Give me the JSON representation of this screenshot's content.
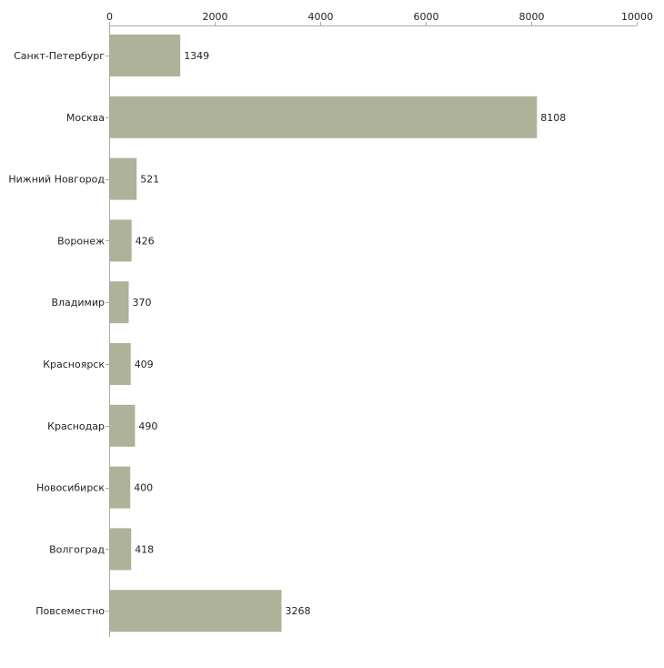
{
  "chart_data": {
    "type": "bar",
    "orientation": "horizontal",
    "title": "",
    "xlabel": "",
    "ylabel": "",
    "xlim": [
      0,
      10000
    ],
    "x_ticks": [
      0,
      2000,
      4000,
      6000,
      8000,
      10000
    ],
    "x_tick_labels": [
      "0",
      "2000",
      "4000",
      "6000",
      "8000",
      "10000"
    ],
    "x_axis_position": "top",
    "grid": false,
    "legend": null,
    "categories": [
      "Санкт-Петербург",
      "Москва",
      "Нижний Новгород",
      "Воронеж",
      "Владимир",
      "Красноярск",
      "Краснодар",
      "Новосибирск",
      "Волгоград",
      "Повсеместно"
    ],
    "values": [
      1349,
      8108,
      521,
      426,
      370,
      409,
      490,
      400,
      418,
      3268
    ],
    "value_labels": [
      "1349",
      "8108",
      "521",
      "426",
      "370",
      "409",
      "490",
      "400",
      "418",
      "3268"
    ]
  },
  "colors": {
    "bar": "#adb298",
    "axis": "#aaaaaa",
    "text": "#222222",
    "background": "#ffffff"
  }
}
